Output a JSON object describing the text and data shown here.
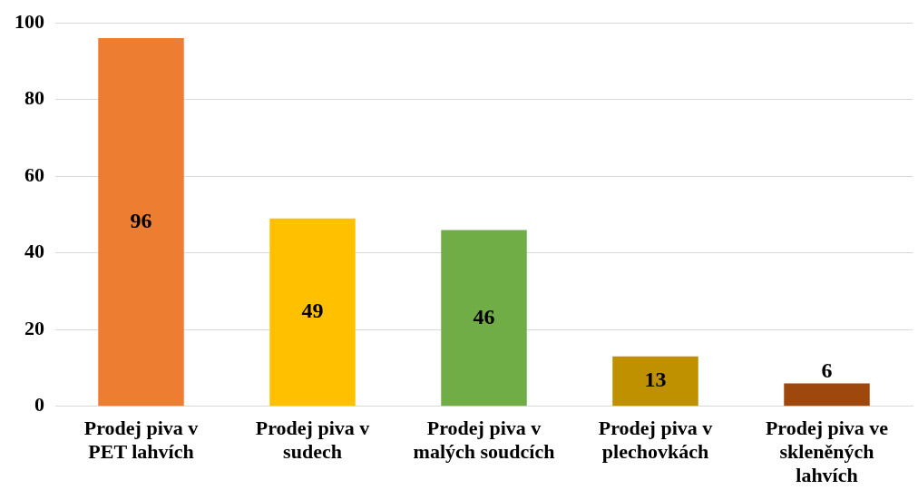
{
  "chart_data": {
    "type": "bar",
    "categories": [
      "Prodej piva v PET lahvích",
      "Prodej piva v sudech",
      "Prodej piva v malých soudcích",
      "Prodej piva v plechovkách",
      "Prodej piva ve skleněných lahvích"
    ],
    "values": [
      96,
      49,
      46,
      13,
      6
    ],
    "colors": [
      "#ed7d31",
      "#ffc000",
      "#70ad47",
      "#bf9000",
      "#9e480e"
    ],
    "ylim": [
      0,
      100
    ],
    "yticks": [
      0,
      20,
      40,
      60,
      80,
      100
    ],
    "grid": "y",
    "legend": false,
    "data_labels": true
  }
}
